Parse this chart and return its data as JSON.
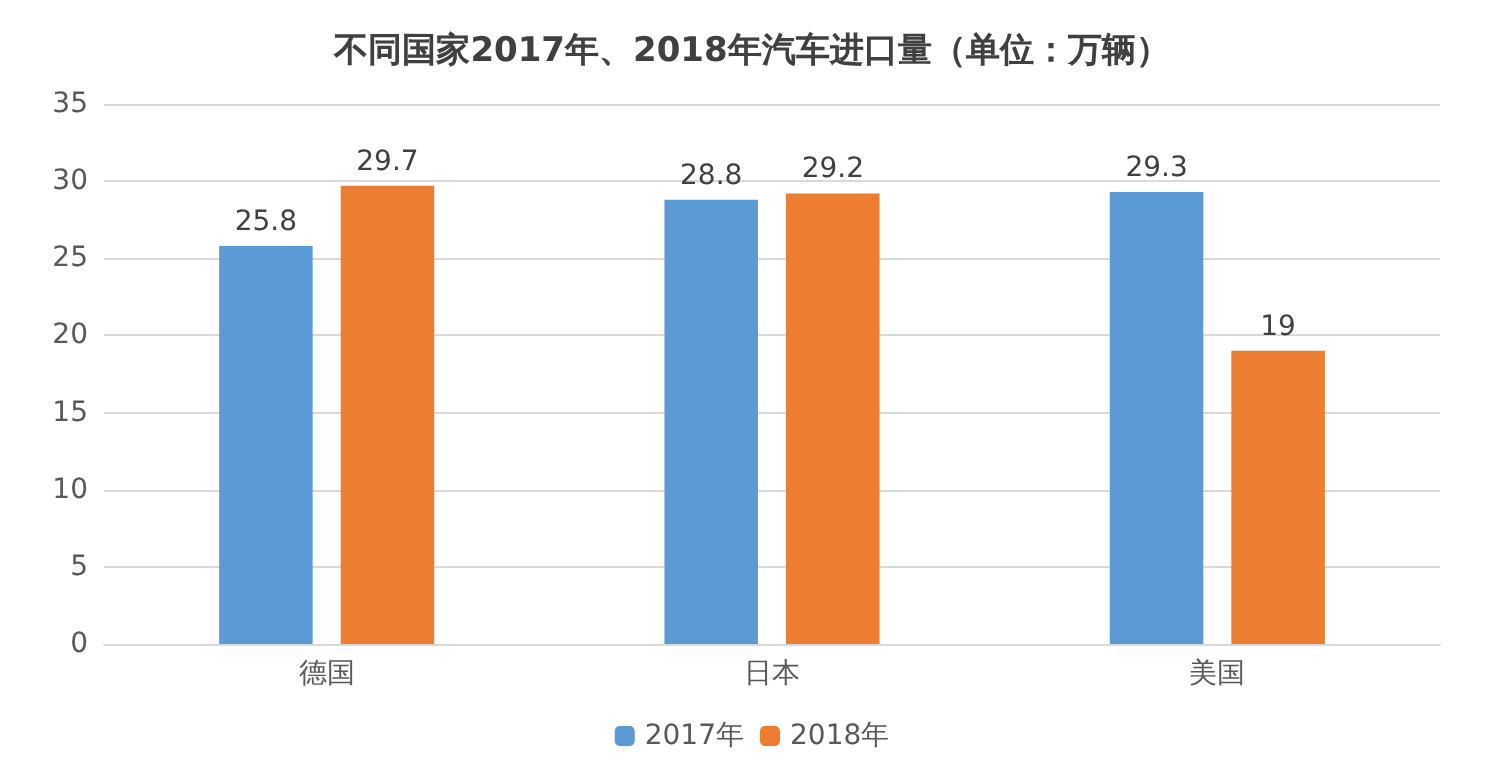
{
  "chart_data": {
    "type": "bar",
    "title": "不同国家2017年、2018年汽车进口量（单位：万辆）",
    "categories": [
      "德国",
      "日本",
      "美国"
    ],
    "series": [
      {
        "name": "2017年",
        "color": "#5b9bd5",
        "values": [
          25.8,
          28.8,
          29.3
        ]
      },
      {
        "name": "2018年",
        "color": "#ed7d31",
        "values": [
          29.7,
          29.2,
          19
        ]
      }
    ],
    "ylim": [
      0,
      35
    ],
    "yticks": [
      0,
      5,
      10,
      15,
      20,
      25,
      30,
      35
    ],
    "grid": "y",
    "legend": "bottom",
    "data_labels": true
  }
}
